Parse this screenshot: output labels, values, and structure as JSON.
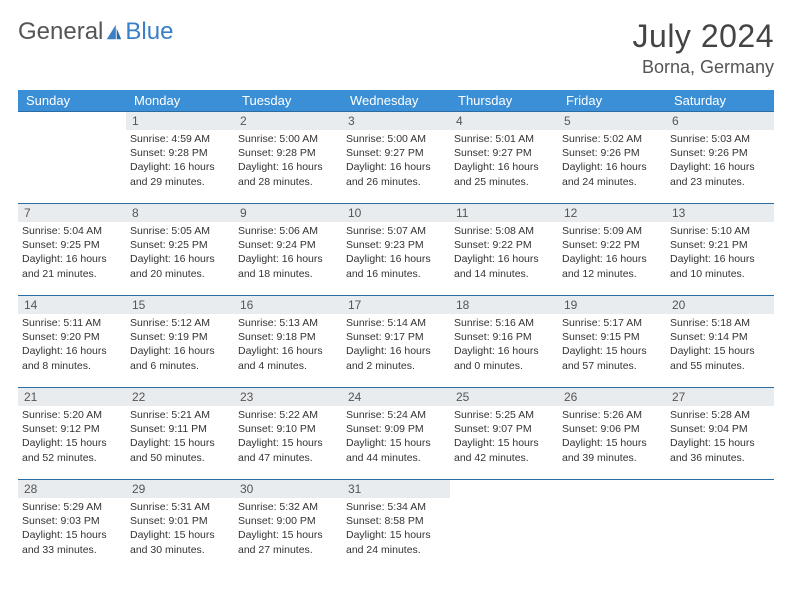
{
  "logo": {
    "part1": "General",
    "part2": "Blue"
  },
  "title": "July 2024",
  "location": "Borna, Germany",
  "colors": {
    "header_bg": "#3b8fd6",
    "header_text": "#ffffff",
    "daynum_bg": "#e9ecef",
    "cell_border": "#2b6ca3",
    "logo_accent": "#3b7fc4"
  },
  "weekdays": [
    "Sunday",
    "Monday",
    "Tuesday",
    "Wednesday",
    "Thursday",
    "Friday",
    "Saturday"
  ],
  "first_weekday_index": 1,
  "days": [
    {
      "n": 1,
      "sunrise": "4:59 AM",
      "sunset": "9:28 PM",
      "dl_h": 16,
      "dl_m": 29
    },
    {
      "n": 2,
      "sunrise": "5:00 AM",
      "sunset": "9:28 PM",
      "dl_h": 16,
      "dl_m": 28
    },
    {
      "n": 3,
      "sunrise": "5:00 AM",
      "sunset": "9:27 PM",
      "dl_h": 16,
      "dl_m": 26
    },
    {
      "n": 4,
      "sunrise": "5:01 AM",
      "sunset": "9:27 PM",
      "dl_h": 16,
      "dl_m": 25
    },
    {
      "n": 5,
      "sunrise": "5:02 AM",
      "sunset": "9:26 PM",
      "dl_h": 16,
      "dl_m": 24
    },
    {
      "n": 6,
      "sunrise": "5:03 AM",
      "sunset": "9:26 PM",
      "dl_h": 16,
      "dl_m": 23
    },
    {
      "n": 7,
      "sunrise": "5:04 AM",
      "sunset": "9:25 PM",
      "dl_h": 16,
      "dl_m": 21
    },
    {
      "n": 8,
      "sunrise": "5:05 AM",
      "sunset": "9:25 PM",
      "dl_h": 16,
      "dl_m": 20
    },
    {
      "n": 9,
      "sunrise": "5:06 AM",
      "sunset": "9:24 PM",
      "dl_h": 16,
      "dl_m": 18
    },
    {
      "n": 10,
      "sunrise": "5:07 AM",
      "sunset": "9:23 PM",
      "dl_h": 16,
      "dl_m": 16
    },
    {
      "n": 11,
      "sunrise": "5:08 AM",
      "sunset": "9:22 PM",
      "dl_h": 16,
      "dl_m": 14
    },
    {
      "n": 12,
      "sunrise": "5:09 AM",
      "sunset": "9:22 PM",
      "dl_h": 16,
      "dl_m": 12
    },
    {
      "n": 13,
      "sunrise": "5:10 AM",
      "sunset": "9:21 PM",
      "dl_h": 16,
      "dl_m": 10
    },
    {
      "n": 14,
      "sunrise": "5:11 AM",
      "sunset": "9:20 PM",
      "dl_h": 16,
      "dl_m": 8
    },
    {
      "n": 15,
      "sunrise": "5:12 AM",
      "sunset": "9:19 PM",
      "dl_h": 16,
      "dl_m": 6
    },
    {
      "n": 16,
      "sunrise": "5:13 AM",
      "sunset": "9:18 PM",
      "dl_h": 16,
      "dl_m": 4
    },
    {
      "n": 17,
      "sunrise": "5:14 AM",
      "sunset": "9:17 PM",
      "dl_h": 16,
      "dl_m": 2
    },
    {
      "n": 18,
      "sunrise": "5:16 AM",
      "sunset": "9:16 PM",
      "dl_h": 16,
      "dl_m": 0
    },
    {
      "n": 19,
      "sunrise": "5:17 AM",
      "sunset": "9:15 PM",
      "dl_h": 15,
      "dl_m": 57
    },
    {
      "n": 20,
      "sunrise": "5:18 AM",
      "sunset": "9:14 PM",
      "dl_h": 15,
      "dl_m": 55
    },
    {
      "n": 21,
      "sunrise": "5:20 AM",
      "sunset": "9:12 PM",
      "dl_h": 15,
      "dl_m": 52
    },
    {
      "n": 22,
      "sunrise": "5:21 AM",
      "sunset": "9:11 PM",
      "dl_h": 15,
      "dl_m": 50
    },
    {
      "n": 23,
      "sunrise": "5:22 AM",
      "sunset": "9:10 PM",
      "dl_h": 15,
      "dl_m": 47
    },
    {
      "n": 24,
      "sunrise": "5:24 AM",
      "sunset": "9:09 PM",
      "dl_h": 15,
      "dl_m": 44
    },
    {
      "n": 25,
      "sunrise": "5:25 AM",
      "sunset": "9:07 PM",
      "dl_h": 15,
      "dl_m": 42
    },
    {
      "n": 26,
      "sunrise": "5:26 AM",
      "sunset": "9:06 PM",
      "dl_h": 15,
      "dl_m": 39
    },
    {
      "n": 27,
      "sunrise": "5:28 AM",
      "sunset": "9:04 PM",
      "dl_h": 15,
      "dl_m": 36
    },
    {
      "n": 28,
      "sunrise": "5:29 AM",
      "sunset": "9:03 PM",
      "dl_h": 15,
      "dl_m": 33
    },
    {
      "n": 29,
      "sunrise": "5:31 AM",
      "sunset": "9:01 PM",
      "dl_h": 15,
      "dl_m": 30
    },
    {
      "n": 30,
      "sunrise": "5:32 AM",
      "sunset": "9:00 PM",
      "dl_h": 15,
      "dl_m": 27
    },
    {
      "n": 31,
      "sunrise": "5:34 AM",
      "sunset": "8:58 PM",
      "dl_h": 15,
      "dl_m": 24
    }
  ],
  "labels": {
    "sunrise": "Sunrise:",
    "sunset": "Sunset:",
    "daylight_prefix": "Daylight:",
    "hours_word": "hours",
    "and_word": "and",
    "minutes_word": "minutes."
  }
}
